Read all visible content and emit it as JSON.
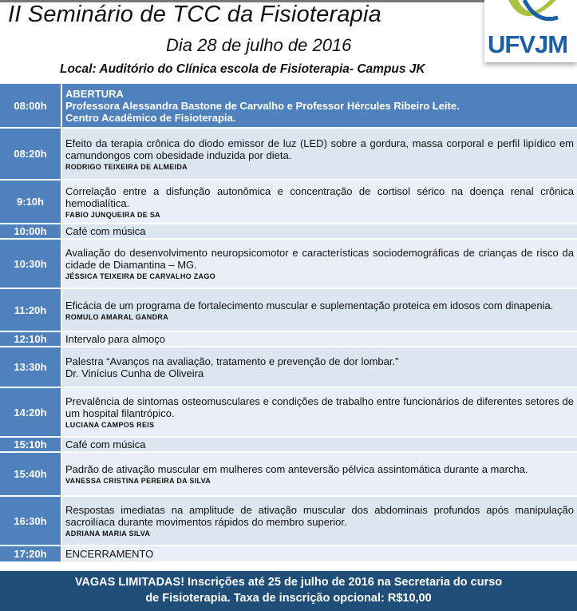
{
  "header": {
    "title": "II Seminário de TCC da Fisioterapia",
    "date": "Dia 28 de julho de 2016",
    "location": "Local: Auditório do Clínica escola de Fisioterapia- Campus JK",
    "logo_text": "UFVJM"
  },
  "schedule": [
    {
      "time": "08:00h",
      "lines": [
        "ABERTURA",
        "Professora Alessandra Bastone de Carvalho e Professor Hércules Ribeiro Leite.",
        "Centro Acadêmico de Fisioterapia."
      ]
    },
    {
      "time": "08:20h",
      "title": "Efeito da terapia crônica do diodo emissor de luz (LED) sobre a gordura, massa corporal e perfil lipídico em camundongos com obesidade induzida por dieta.",
      "author": "RODRIGO TEIXEIRA DE ALMEIDA"
    },
    {
      "time": "9:10h",
      "title": "Correlação entre a disfunção autonômica e concentração de cortisol sérico na doença renal crônica hemodialítica.",
      "author": "FABIO JUNQUEIRA DE SA"
    },
    {
      "time": "10:00h",
      "title": "Café com música"
    },
    {
      "time": "10:30h",
      "title": "Avaliação do desenvolvimento neuropsicomotor e características sociodemográficas de crianças de risco da cidade de Diamantina – MG.",
      "author": "JÉSSICA TEIXEIRA DE CARVALHO ZAGO"
    },
    {
      "time": "11:20h",
      "title": "Eficácia de um programa de fortalecimento muscular e suplementação proteica em idosos com dinapenia.",
      "author": "ROMULO AMARAL GANDRA"
    },
    {
      "time": "12:10h",
      "title": "Intervalo para almoço"
    },
    {
      "time": "13:30h",
      "title": "Palestra “Avanços na avaliação, tratamento e prevenção de dor lombar.”",
      "speaker": "Dr. Vinícius Cunha de Oliveira"
    },
    {
      "time": "14:20h",
      "title": "Prevalência de sintomas osteomusculares e condições de trabalho entre funcionários de diferentes setores de um hospital filantrópico.",
      "author": "LUCIANA CAMPOS REIS"
    },
    {
      "time": "15:10h",
      "title": "Café com música"
    },
    {
      "time": "15:40h",
      "title": "Padrão de ativação muscular em mulheres com anteversão pélvica assintomática durante a marcha.",
      "author": "VANESSA CRISTINA PEREIRA DA SILVA"
    },
    {
      "time": "16:30h",
      "title": "Respostas imediatas na amplitude de ativação muscular dos abdominais profundos após manipulação sacroilíaca durante movimentos rápidos do membro superior.",
      "author": "ADRIANA MARIA SILVA"
    },
    {
      "time": "17:20h",
      "title": "ENCERRAMENTO"
    }
  ],
  "footer": {
    "line1": "VAGAS LIMITADAS! Inscrições até 25 de julho de 2016 na Secretaria do curso",
    "line2": "de Fisioterapia.  Taxa de inscrição opcional: R$10,00"
  },
  "colors": {
    "time_cell": "#4f81bd",
    "row": "#dce6f1",
    "footer": "#1f4e79",
    "logo_blue": "#1b5fa8",
    "logo_green": "#a9c23f"
  }
}
